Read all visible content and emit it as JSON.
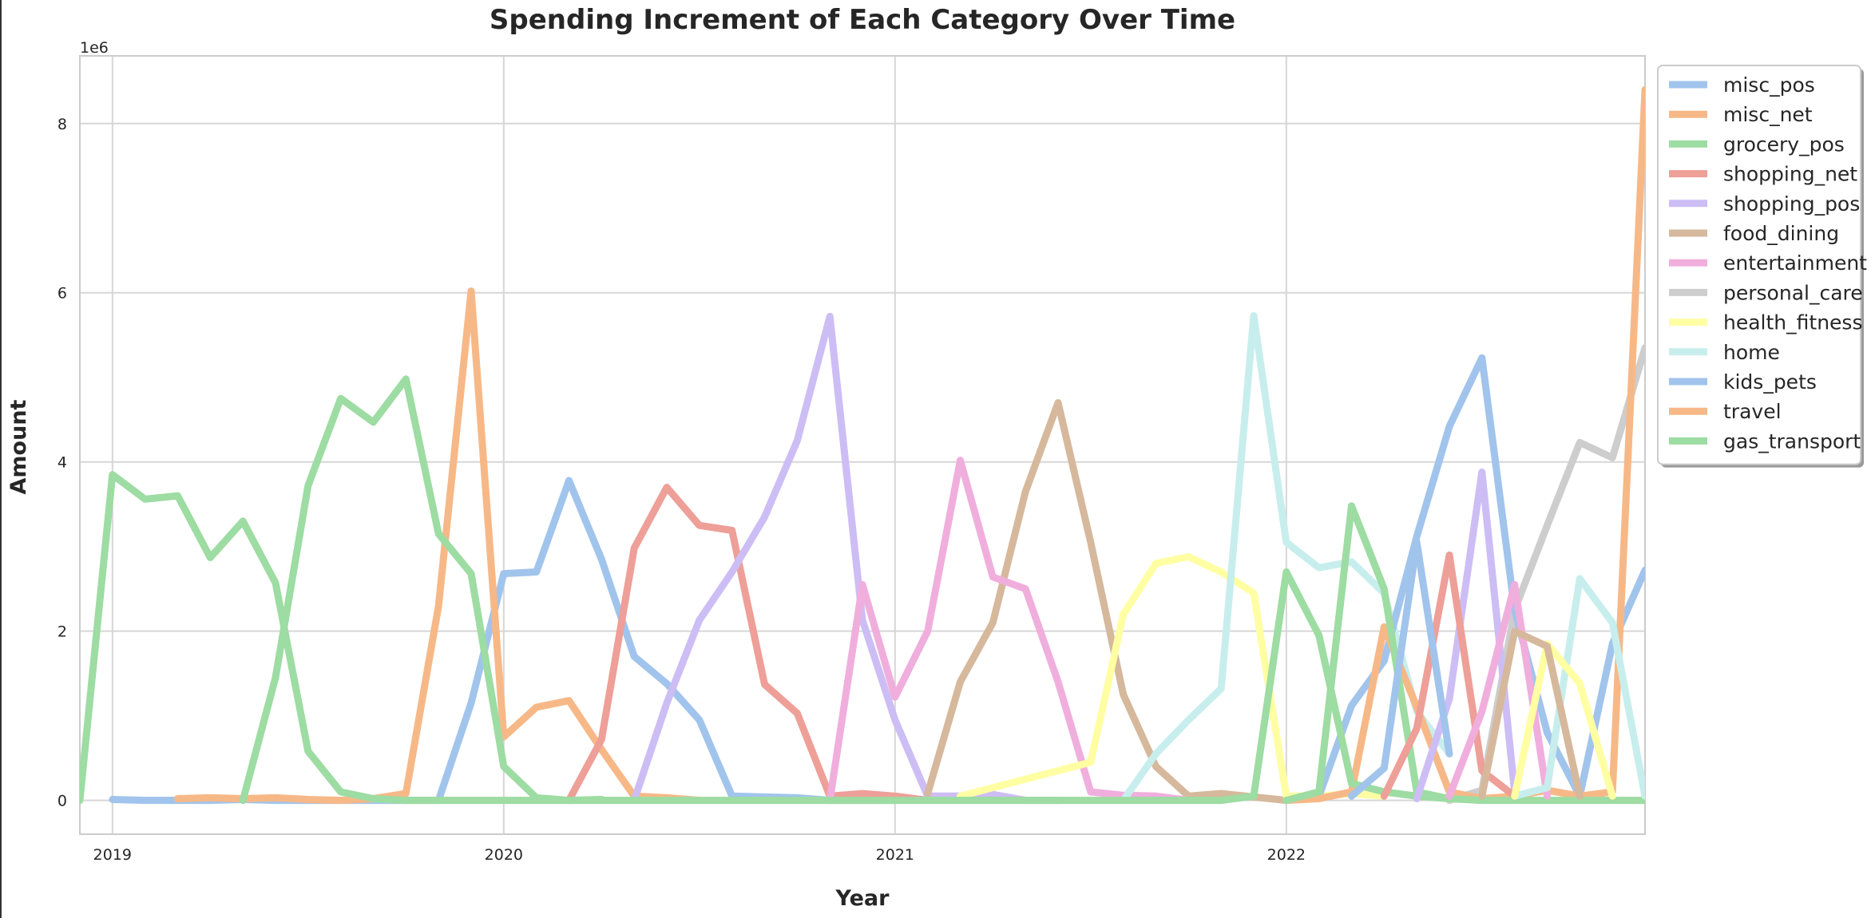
{
  "chart_data": {
    "type": "line",
    "title": "Spending Increment of Each Category Over Time",
    "xlabel": "Year",
    "ylabel": "Amount",
    "y_offset_text": "1e6",
    "xlim": [
      "2018-12",
      "2022-12"
    ],
    "ylim": [
      -0.4,
      8.8
    ],
    "y_scale": 1000000,
    "x_ticks": [
      {
        "date": "2019-01",
        "label": "2019"
      },
      {
        "date": "2020-01",
        "label": "2020"
      },
      {
        "date": "2021-01",
        "label": "2021"
      },
      {
        "date": "2022-01",
        "label": "2022"
      }
    ],
    "y_ticks": [
      {
        "value": 0,
        "label": "0"
      },
      {
        "value": 2,
        "label": "2"
      },
      {
        "value": 4,
        "label": "4"
      },
      {
        "value": 6,
        "label": "6"
      },
      {
        "value": 8,
        "label": "8"
      }
    ],
    "grid": true,
    "legend_position": "upper right outside",
    "series": [
      {
        "name": "misc_pos",
        "color": "#a1c4ec",
        "x": [
          "2019-01",
          "2019-02",
          "2019-03",
          "2019-04",
          "2019-05",
          "2019-06",
          "2019-07",
          "2019-08",
          "2019-09",
          "2019-10",
          "2019-11",
          "2019-12",
          "2020-01",
          "2020-02",
          "2020-03",
          "2020-04",
          "2020-05",
          "2020-06",
          "2020-07",
          "2020-08",
          "2020-09",
          "2020-10",
          "2020-11",
          "2020-12",
          "2021-01"
        ],
        "values": [
          0.01,
          0.0,
          0.0,
          0.0,
          0.01,
          0.0,
          0.0,
          0.0,
          0.0,
          0.0,
          0.0,
          1.15,
          2.68,
          2.7,
          3.78,
          2.85,
          1.7,
          1.38,
          0.95,
          0.05,
          0.04,
          0.03,
          0.0,
          0.0,
          0.0
        ]
      },
      {
        "name": "misc_net",
        "color": "#f7b887",
        "x": [
          "2019-03",
          "2019-04",
          "2019-05",
          "2019-06",
          "2019-07",
          "2019-08",
          "2019-09",
          "2019-10",
          "2019-11",
          "2019-12",
          "2020-01",
          "2020-02",
          "2020-03",
          "2020-04",
          "2020-05",
          "2020-06",
          "2020-07"
        ],
        "values": [
          0.02,
          0.03,
          0.02,
          0.03,
          0.01,
          0.0,
          0.02,
          0.08,
          2.3,
          6.02,
          0.75,
          1.1,
          1.18,
          0.6,
          0.05,
          0.03,
          0.0
        ]
      },
      {
        "name": "grocery_pos",
        "color": "#9ddca2",
        "x": [
          "2019-05",
          "2019-06",
          "2019-07",
          "2019-08",
          "2019-09",
          "2019-10",
          "2019-11",
          "2019-12",
          "2020-01",
          "2020-02",
          "2020-03",
          "2020-04"
        ],
        "values": [
          0.0,
          1.45,
          3.72,
          4.75,
          4.47,
          4.98,
          3.15,
          2.68,
          0.4,
          0.03,
          0.0,
          0.01
        ]
      },
      {
        "name": "shopping_net",
        "color": "#ee9f98",
        "x": [
          "2020-03",
          "2020-04",
          "2020-05",
          "2020-06",
          "2020-07",
          "2020-08",
          "2020-09",
          "2020-10",
          "2020-11",
          "2020-12",
          "2021-01",
          "2021-02"
        ],
        "values": [
          0.0,
          0.72,
          2.98,
          3.7,
          3.25,
          3.19,
          1.37,
          1.03,
          0.05,
          0.08,
          0.05,
          0.0
        ]
      },
      {
        "name": "shopping_pos",
        "color": "#cdbdf5",
        "x": [
          "2020-05",
          "2020-06",
          "2020-07",
          "2020-08",
          "2020-09",
          "2020-10",
          "2020-11",
          "2020-12",
          "2021-01",
          "2021-02",
          "2021-03",
          "2021-04",
          "2021-05",
          "2021-06"
        ],
        "values": [
          0.0,
          1.15,
          2.13,
          2.7,
          3.35,
          4.25,
          5.72,
          2.13,
          0.95,
          0.05,
          0.05,
          0.07,
          0.0,
          0.0
        ]
      },
      {
        "name": "food_dining",
        "color": "#d6b89c",
        "x": [
          "2021-02",
          "2021-03",
          "2021-04",
          "2021-05",
          "2021-06",
          "2021-07",
          "2021-08",
          "2021-09",
          "2021-10",
          "2021-11",
          "2021-12",
          "2022-01"
        ],
        "values": [
          0.08,
          1.4,
          2.1,
          3.65,
          4.7,
          3.05,
          1.25,
          0.4,
          0.05,
          0.08,
          0.04,
          0.0
        ]
      },
      {
        "name": "entertainment",
        "color": "#f0aedd",
        "x": [
          "2020-11",
          "2020-12",
          "2021-01",
          "2021-02",
          "2021-03",
          "2021-04",
          "2021-05",
          "2021-06",
          "2021-07",
          "2021-08",
          "2021-09",
          "2021-10"
        ],
        "values": [
          0.0,
          2.55,
          1.22,
          2.0,
          4.02,
          2.64,
          2.5,
          1.4,
          0.1,
          0.06,
          0.05,
          0.0
        ]
      },
      {
        "name": "personal_care",
        "color": "#cdcdcd",
        "x": [
          "2022-06",
          "2022-07",
          "2022-08",
          "2022-09",
          "2022-10",
          "2022-11",
          "2022-12"
        ],
        "values": [
          0.0,
          0.12,
          2.25,
          3.25,
          4.23,
          4.05,
          5.35
        ]
      },
      {
        "name": "health_fitness",
        "color": "#fffea3",
        "x": [
          "2021-03",
          "2021-04",
          "2021-05",
          "2021-06",
          "2021-07",
          "2021-08",
          "2021-09",
          "2021-10",
          "2021-11",
          "2021-12",
          "2022-01",
          "2022-02",
          "2022-03",
          "2022-04"
        ],
        "values": [
          0.05,
          0.15,
          0.25,
          0.35,
          0.45,
          2.2,
          2.8,
          2.88,
          2.7,
          2.45,
          0.05,
          0.05,
          0.08,
          0.05
        ]
      },
      {
        "name": "home",
        "color": "#c7eeed",
        "x": [
          "2021-08",
          "2021-09",
          "2021-10",
          "2021-11",
          "2021-12",
          "2022-01",
          "2022-02",
          "2022-03",
          "2022-04",
          "2022-05",
          "2022-06"
        ],
        "values": [
          0.0,
          0.55,
          0.95,
          1.32,
          5.73,
          3.05,
          2.75,
          2.82,
          2.45,
          1.05,
          0.55
        ]
      },
      {
        "name": "kids_pets",
        "color": "#a1c4ec",
        "x": [
          "2022-01",
          "2022-02",
          "2022-03",
          "2022-04",
          "2022-05",
          "2022-06",
          "2022-07",
          "2022-08",
          "2022-09",
          "2022-10",
          "2022-11",
          "2022-12"
        ],
        "values": [
          0.0,
          0.05,
          1.12,
          1.65,
          3.12,
          4.42,
          5.23,
          2.25,
          0.8,
          0.05,
          1.85,
          2.72
        ]
      },
      {
        "name": "travel",
        "color": "#f7b887",
        "x": [
          "2022-01",
          "2022-02",
          "2022-03",
          "2022-04",
          "2022-05",
          "2022-06",
          "2022-07",
          "2022-08",
          "2022-09",
          "2022-10",
          "2022-11",
          "2022-12"
        ],
        "values": [
          0.0,
          0.02,
          0.1,
          2.05,
          1.1,
          0.1,
          0.02,
          0.05,
          0.12,
          0.05,
          0.1,
          8.4
        ]
      },
      {
        "name": "gas_transport",
        "color": "#9ddca2",
        "x": [
          "2018-12",
          "2019-01",
          "2019-02",
          "2019-03",
          "2019-04",
          "2019-05",
          "2019-06",
          "2019-07",
          "2019-08",
          "2019-09",
          "2019-10",
          "2019-11",
          "2019-12",
          "2020-01",
          "2020-02",
          "2020-03",
          "2020-04",
          "2020-05",
          "2020-06",
          "2020-07",
          "2020-08",
          "2020-09",
          "2020-10",
          "2020-11",
          "2020-12",
          "2021-01",
          "2021-02",
          "2021-03",
          "2021-04",
          "2021-05",
          "2021-06",
          "2021-07",
          "2021-08",
          "2021-09",
          "2021-10",
          "2021-11",
          "2021-12",
          "2022-01",
          "2022-02",
          "2022-03",
          "2022-04",
          "2022-05",
          "2022-06",
          "2022-07",
          "2022-08",
          "2022-09",
          "2022-10",
          "2022-11",
          "2022-12"
        ],
        "values": [
          0.0,
          3.85,
          3.56,
          3.6,
          2.87,
          3.3,
          2.57,
          0.58,
          0.1,
          0.02,
          0.0,
          0.0,
          0.0,
          0.0,
          0.0,
          0.0,
          0.0,
          0.0,
          0.0,
          0.0,
          0.0,
          0.0,
          0.0,
          0.0,
          0.0,
          0.0,
          0.0,
          0.0,
          0.0,
          0.0,
          0.0,
          0.0,
          0.0,
          0.0,
          0.0,
          0.0,
          0.05,
          2.7,
          1.95,
          0.2,
          0.1,
          0.05,
          0.02,
          0.0,
          0.0,
          0.0,
          0.0,
          0.0,
          0.0
        ]
      },
      {
        "name": "",
        "color": "#9ddca2",
        "x": [
          "2022-01",
          "2022-02",
          "2022-03",
          "2022-04",
          "2022-05",
          "2022-06"
        ],
        "values": [
          0.0,
          0.1,
          3.48,
          2.5,
          0.1,
          0.02
        ]
      },
      {
        "name": "",
        "color": "#cdbdf5",
        "x": [
          "2022-05",
          "2022-06",
          "2022-07",
          "2022-08"
        ],
        "values": [
          0.02,
          1.2,
          3.88,
          0.1
        ]
      },
      {
        "name": "",
        "color": "#ee9f98",
        "x": [
          "2022-04",
          "2022-05",
          "2022-06",
          "2022-07",
          "2022-08"
        ],
        "values": [
          0.05,
          0.85,
          2.9,
          0.35,
          0.05
        ]
      },
      {
        "name": "",
        "color": "#f0aedd",
        "x": [
          "2022-06",
          "2022-07",
          "2022-08",
          "2022-09"
        ],
        "values": [
          0.05,
          1.05,
          2.55,
          0.05
        ]
      },
      {
        "name": "",
        "color": "#a1c4ec",
        "x": [
          "2022-03",
          "2022-04",
          "2022-05",
          "2022-06"
        ],
        "values": [
          0.05,
          0.38,
          3.05,
          0.55
        ]
      },
      {
        "name": "",
        "color": "#c7eeed",
        "x": [
          "2022-08",
          "2022-09",
          "2022-10",
          "2022-11",
          "2022-12"
        ],
        "values": [
          0.05,
          0.15,
          2.62,
          2.1,
          0.05
        ]
      },
      {
        "name": "",
        "color": "#fffea3",
        "x": [
          "2022-08",
          "2022-09",
          "2022-10",
          "2022-11"
        ],
        "values": [
          0.05,
          1.85,
          1.38,
          0.05
        ]
      },
      {
        "name": "",
        "color": "#d6b89c",
        "x": [
          "2022-07",
          "2022-08",
          "2022-09",
          "2022-10"
        ],
        "values": [
          0.05,
          2.0,
          1.82,
          0.05
        ]
      }
    ]
  }
}
